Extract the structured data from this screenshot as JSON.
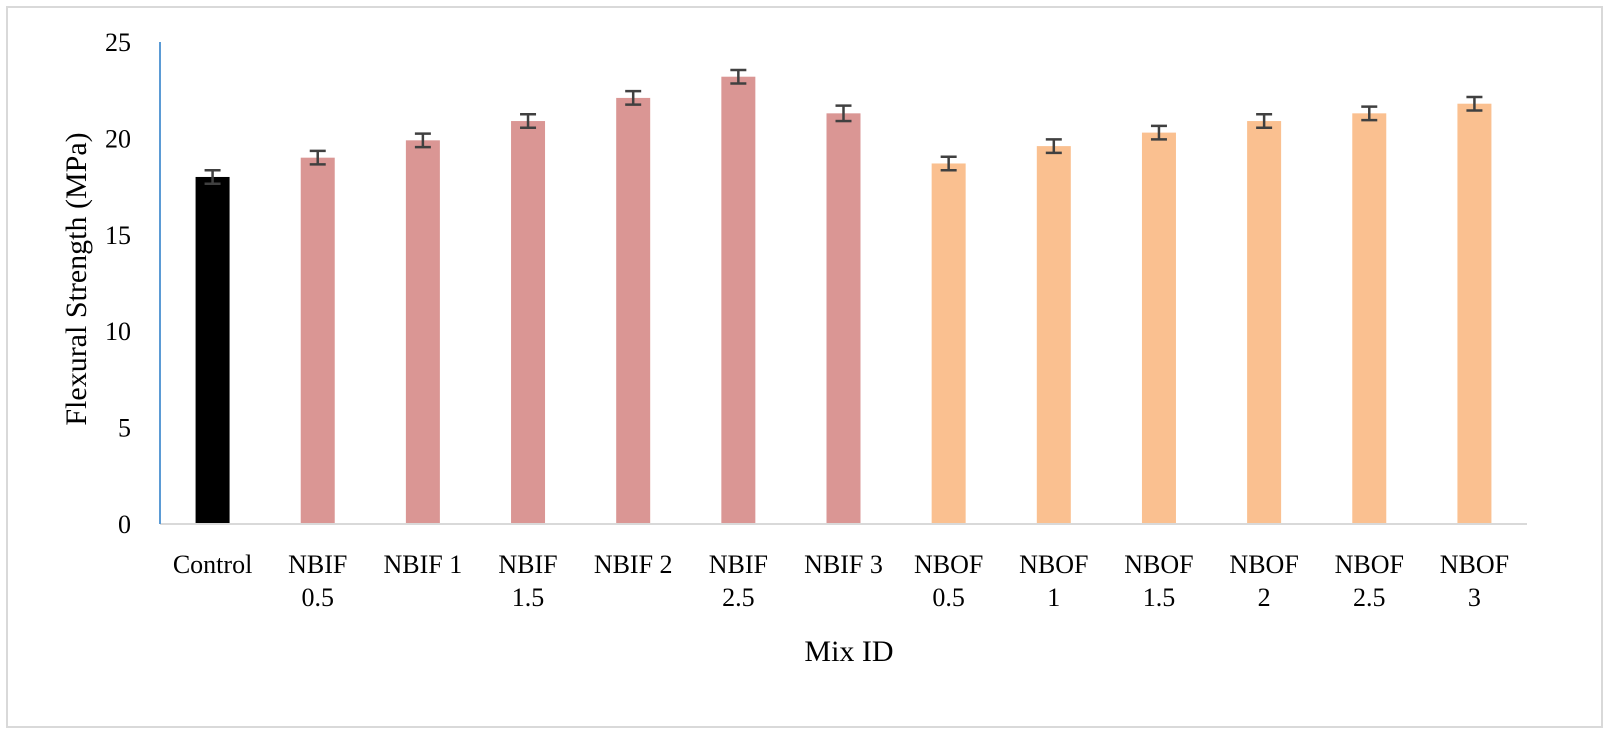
{
  "chart_data": {
    "type": "bar",
    "title": "",
    "xlabel": "Mix ID",
    "ylabel": "Flexural Strength (MPa)",
    "ylim": [
      0,
      25
    ],
    "yticks": [
      0,
      5,
      10,
      15,
      20,
      25
    ],
    "grid": false,
    "legend": "none",
    "categories": [
      [
        "Control"
      ],
      [
        "NBIF",
        "0.5"
      ],
      [
        "NBIF 1"
      ],
      [
        "NBIF",
        "1.5"
      ],
      [
        "NBIF 2"
      ],
      [
        "NBIF",
        "2.5"
      ],
      [
        "NBIF 3"
      ],
      [
        "NBOF",
        "0.5"
      ],
      [
        "NBOF",
        "1"
      ],
      [
        "NBOF",
        "1.5"
      ],
      [
        "NBOF",
        "2"
      ],
      [
        "NBOF",
        "2.5"
      ],
      [
        "NBOF",
        "3"
      ]
    ],
    "values": [
      18.0,
      19.0,
      19.9,
      20.9,
      22.1,
      23.2,
      21.3,
      18.7,
      19.6,
      20.3,
      20.9,
      21.3,
      21.8
    ],
    "errors": [
      0.35,
      0.35,
      0.35,
      0.35,
      0.35,
      0.35,
      0.4,
      0.35,
      0.35,
      0.35,
      0.35,
      0.35,
      0.35
    ],
    "bar_colors": [
      "#000000",
      "#da9694",
      "#da9694",
      "#da9694",
      "#da9694",
      "#da9694",
      "#da9694",
      "#fac090",
      "#fac090",
      "#fac090",
      "#fac090",
      "#fac090",
      "#fac090"
    ],
    "axis_colors": {
      "y_axis": "#5b9bd5",
      "x_axis": "#d9d9d9",
      "error_bar": "#404040"
    }
  }
}
